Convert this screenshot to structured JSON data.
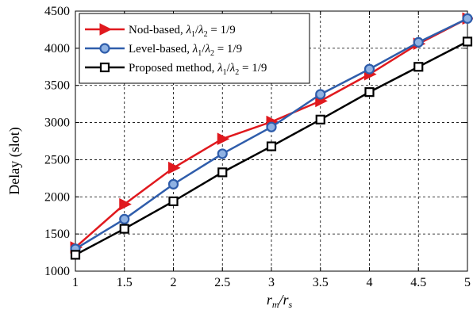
{
  "chart_data": {
    "type": "line",
    "x": [
      1,
      1.5,
      2,
      2.5,
      3,
      3.5,
      4,
      4.5,
      5
    ],
    "xlim": [
      1,
      5
    ],
    "ylim": [
      1000,
      4500
    ],
    "x_ticks": [
      "1",
      "1.5",
      "2",
      "2.5",
      "3",
      "3.5",
      "4",
      "4.5",
      "5"
    ],
    "y_ticks": [
      "1000",
      "1500",
      "2000",
      "2500",
      "3000",
      "3500",
      "4000",
      "4500"
    ],
    "ylabel": "Delay (slot)",
    "xlabel_main": "r",
    "xlabel_sub1": "m",
    "xlabel_sep": "/r",
    "xlabel_sub2": "s",
    "grid": true,
    "grid_style": "dashed",
    "legend_position": "top-left",
    "series": [
      {
        "name_main": "Nod-based,",
        "name": "Nod-based, λ1/λ2 = 1/9",
        "color": "#e0191e",
        "marker": "triangle-right",
        "values": [
          1320,
          1900,
          2390,
          2780,
          3010,
          3290,
          3650,
          4060,
          4400
        ]
      },
      {
        "name_main": "Level-based,",
        "name": "Level-based, λ1/λ2 = 1/9",
        "color": "#2f5dab",
        "marker": "circle",
        "values": [
          1300,
          1700,
          2170,
          2580,
          2940,
          3380,
          3720,
          4080,
          4400
        ]
      },
      {
        "name_main": "Proposed method,",
        "name": "Proposed method, λ1/λ2 = 1/9",
        "color": "#000000",
        "marker": "square",
        "values": [
          1220,
          1570,
          1940,
          2330,
          2680,
          3040,
          3410,
          3750,
          4090
        ]
      }
    ],
    "legend_math": {
      "l1": "λ",
      "s1": "1",
      "slash": "/",
      "l2": "λ",
      "s2": "2",
      "rest": " = 1/9"
    }
  }
}
